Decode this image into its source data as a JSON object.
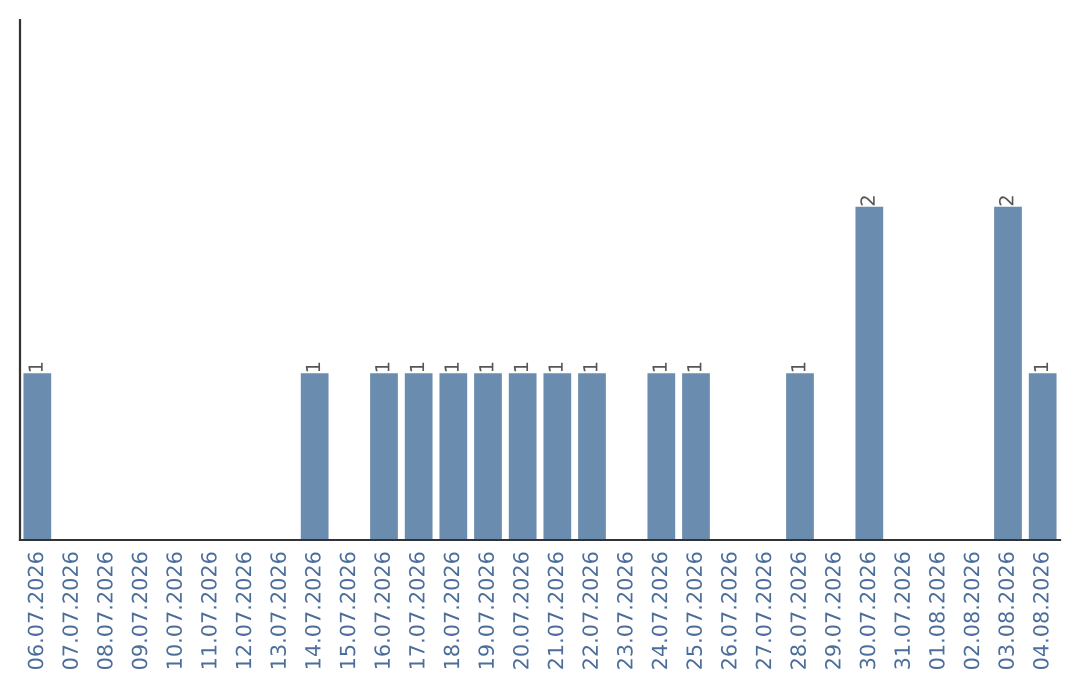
{
  "chart_data": {
    "type": "bar",
    "categories": [
      "06.07.2026",
      "07.07.2026",
      "08.07.2026",
      "09.07.2026",
      "10.07.2026",
      "11.07.2026",
      "12.07.2026",
      "13.07.2026",
      "14.07.2026",
      "15.07.2026",
      "16.07.2026",
      "17.07.2026",
      "18.07.2026",
      "19.07.2026",
      "20.07.2026",
      "21.07.2026",
      "22.07.2026",
      "23.07.2026",
      "24.07.2026",
      "25.07.2026",
      "26.07.2026",
      "27.07.2026",
      "28.07.2026",
      "29.07.2026",
      "30.07.2026",
      "31.07.2026",
      "01.08.2026",
      "02.08.2026",
      "03.08.2026",
      "04.08.2026"
    ],
    "values": [
      1,
      0,
      0,
      0,
      0,
      0,
      0,
      0,
      1,
      0,
      1,
      1,
      1,
      1,
      1,
      1,
      1,
      0,
      1,
      1,
      0,
      0,
      1,
      0,
      2,
      0,
      0,
      0,
      2,
      1
    ],
    "value_labels": [
      "1",
      null,
      null,
      null,
      null,
      null,
      null,
      null,
      "1",
      null,
      "1",
      "1",
      "1",
      "1",
      "1",
      "1",
      "1",
      null,
      "1",
      "1",
      null,
      null,
      "1",
      null,
      "2",
      null,
      null,
      null,
      "2",
      "1"
    ],
    "color": "#6a8caf",
    "grid": false,
    "legend": false
  }
}
